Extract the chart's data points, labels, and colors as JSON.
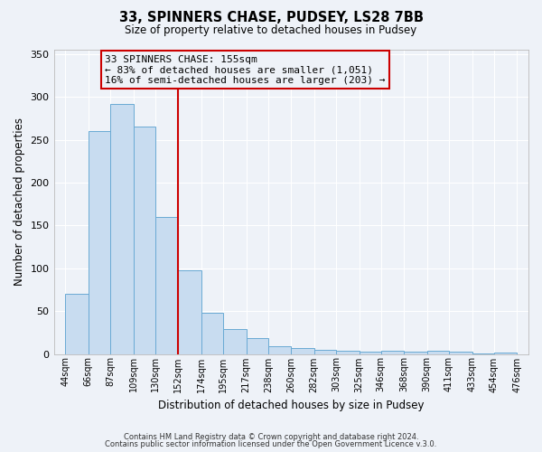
{
  "title1": "33, SPINNERS CHASE, PUDSEY, LS28 7BB",
  "title2": "Size of property relative to detached houses in Pudsey",
  "xlabel": "Distribution of detached houses by size in Pudsey",
  "ylabel": "Number of detached properties",
  "bar_left_edges": [
    44,
    66,
    87,
    109,
    130,
    152,
    174,
    195,
    217,
    238,
    260,
    282,
    303,
    325,
    346,
    368,
    390,
    411,
    433,
    454
  ],
  "bar_widths": [
    22,
    21,
    22,
    21,
    22,
    22,
    21,
    22,
    21,
    22,
    22,
    21,
    22,
    21,
    22,
    22,
    21,
    22,
    21,
    22
  ],
  "bar_heights": [
    70,
    260,
    292,
    265,
    160,
    98,
    48,
    29,
    18,
    9,
    7,
    5,
    4,
    3,
    4,
    3,
    4,
    3,
    1,
    2
  ],
  "bar_color": "#c8dcf0",
  "bar_edgecolor": "#6aaad4",
  "vline_x": 152,
  "vline_color": "#cc0000",
  "annotation_box_color": "#cc0000",
  "annotation_line1": "33 SPINNERS CHASE: 155sqm",
  "annotation_line2": "← 83% of detached houses are smaller (1,051)",
  "annotation_line3": "16% of semi-detached houses are larger (203) →",
  "ylim": [
    0,
    355
  ],
  "xlim": [
    33,
    487
  ],
  "yticks": [
    0,
    50,
    100,
    150,
    200,
    250,
    300,
    350
  ],
  "xtick_labels": [
    "44sqm",
    "66sqm",
    "87sqm",
    "109sqm",
    "130sqm",
    "152sqm",
    "174sqm",
    "195sqm",
    "217sqm",
    "238sqm",
    "260sqm",
    "282sqm",
    "303sqm",
    "325sqm",
    "346sqm",
    "368sqm",
    "390sqm",
    "411sqm",
    "433sqm",
    "454sqm",
    "476sqm"
  ],
  "xtick_positions": [
    44,
    66,
    87,
    109,
    130,
    152,
    174,
    195,
    217,
    238,
    260,
    282,
    303,
    325,
    346,
    368,
    390,
    411,
    433,
    454,
    476
  ],
  "footer1": "Contains HM Land Registry data © Crown copyright and database right 2024.",
  "footer2": "Contains public sector information licensed under the Open Government Licence v.3.0.",
  "background_color": "#eef2f8",
  "grid_color": "#ffffff"
}
